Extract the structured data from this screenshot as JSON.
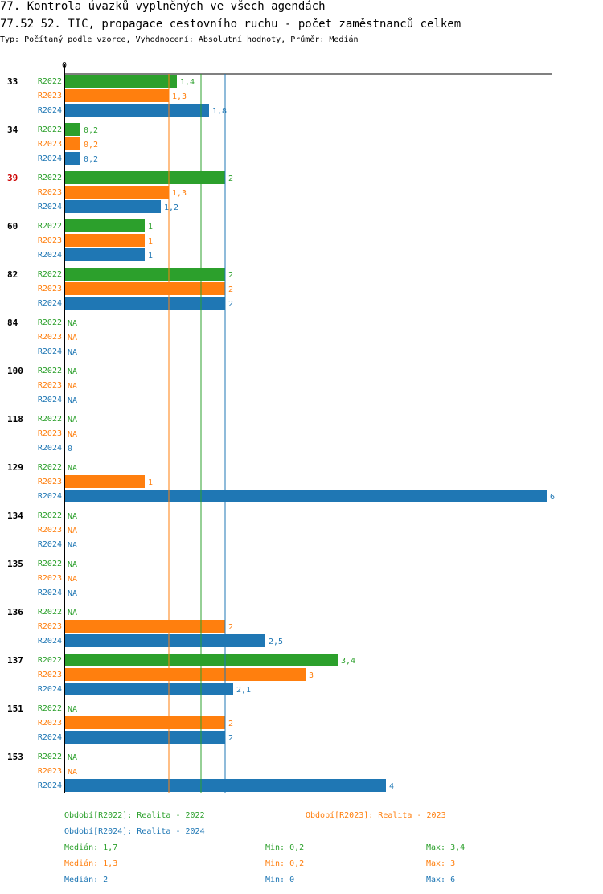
{
  "header": {
    "title_line1": "77. Kontrola úvazků vyplněných ve všech agendách",
    "title_line2": "77.52 52. TIC, propagace cestovního ruchu - počet zaměstnanců celkem",
    "subtitle": "Typ: Počítaný podle vzorce, Vyhodnocení: Absolutní hodnoty, Průměr: Medián"
  },
  "colors": {
    "R2022": "#2ca02c",
    "R2023": "#ff7f0e",
    "R2024": "#1f77b4",
    "highlight": "#cc0000",
    "text": "#000000"
  },
  "chart_data": {
    "type": "bar",
    "orientation": "horizontal",
    "axis_zero_label": "0",
    "xlim": [
      0,
      6
    ],
    "series_names": [
      "R2022",
      "R2023",
      "R2024"
    ],
    "groups": [
      {
        "label": "33",
        "highlight": false,
        "values": [
          1.4,
          1.3,
          1.8
        ],
        "labels": [
          "1,4",
          "1,3",
          "1,8"
        ]
      },
      {
        "label": "34",
        "highlight": false,
        "values": [
          0.2,
          0.2,
          0.2
        ],
        "labels": [
          "0,2",
          "0,2",
          "0,2"
        ]
      },
      {
        "label": "39",
        "highlight": true,
        "values": [
          2,
          1.3,
          1.2
        ],
        "labels": [
          "2",
          "1,3",
          "1,2"
        ]
      },
      {
        "label": "60",
        "highlight": false,
        "values": [
          1,
          1,
          1
        ],
        "labels": [
          "1",
          "1",
          "1"
        ]
      },
      {
        "label": "82",
        "highlight": false,
        "values": [
          2,
          2,
          2
        ],
        "labels": [
          "2",
          "2",
          "2"
        ]
      },
      {
        "label": "84",
        "highlight": false,
        "values": [
          null,
          null,
          null
        ],
        "labels": [
          "NA",
          "NA",
          "NA"
        ]
      },
      {
        "label": "100",
        "highlight": false,
        "values": [
          null,
          null,
          null
        ],
        "labels": [
          "NA",
          "NA",
          "NA"
        ]
      },
      {
        "label": "118",
        "highlight": false,
        "values": [
          null,
          null,
          0
        ],
        "labels": [
          "NA",
          "NA",
          "0"
        ]
      },
      {
        "label": "129",
        "highlight": false,
        "values": [
          null,
          1,
          6
        ],
        "labels": [
          "NA",
          "1",
          "6"
        ]
      },
      {
        "label": "134",
        "highlight": false,
        "values": [
          null,
          null,
          null
        ],
        "labels": [
          "NA",
          "NA",
          "NA"
        ]
      },
      {
        "label": "135",
        "highlight": false,
        "values": [
          null,
          null,
          null
        ],
        "labels": [
          "NA",
          "NA",
          "NA"
        ]
      },
      {
        "label": "136",
        "highlight": false,
        "values": [
          null,
          2,
          2.5
        ],
        "labels": [
          "NA",
          "2",
          "2,5"
        ]
      },
      {
        "label": "137",
        "highlight": false,
        "values": [
          3.4,
          3,
          2.1
        ],
        "labels": [
          "3,4",
          "3",
          "2,1"
        ]
      },
      {
        "label": "151",
        "highlight": false,
        "values": [
          null,
          2,
          2
        ],
        "labels": [
          "NA",
          "2",
          "2"
        ]
      },
      {
        "label": "153",
        "highlight": false,
        "values": [
          null,
          null,
          4
        ],
        "labels": [
          "NA",
          "NA",
          "4"
        ]
      }
    ],
    "median_lines": [
      {
        "series": "R2022",
        "value": 1.7
      },
      {
        "series": "R2023",
        "value": 1.3
      },
      {
        "series": "R2024",
        "value": 2
      }
    ]
  },
  "legend": {
    "periods": [
      {
        "series": "R2022",
        "text": "Období[R2022]: Realita - 2022"
      },
      {
        "series": "R2023",
        "text": "Období[R2023]: Realita - 2023"
      },
      {
        "series": "R2024",
        "text": "Období[R2024]: Realita - 2024"
      }
    ],
    "stats": [
      {
        "series": "R2022",
        "median": "Medián: 1,7",
        "min": "Min: 0,2",
        "max": "Max: 3,4"
      },
      {
        "series": "R2023",
        "median": "Medián: 1,3",
        "min": "Min: 0,2",
        "max": "Max: 3"
      },
      {
        "series": "R2024",
        "median": "Medián: 2",
        "min": "Min: 0",
        "max": "Max: 6"
      }
    ]
  }
}
